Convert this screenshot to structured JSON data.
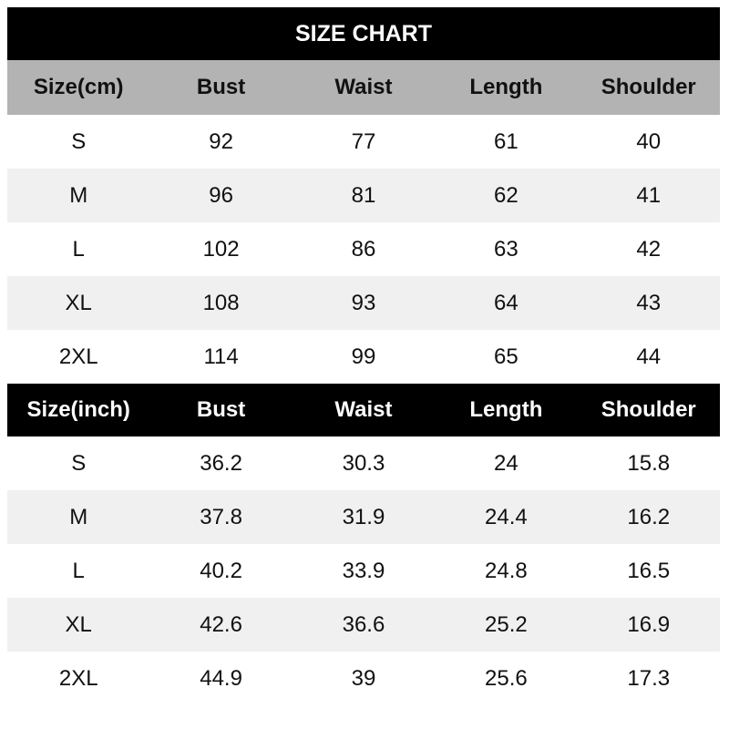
{
  "title": "SIZE CHART",
  "tables": [
    {
      "header": [
        "Size(cm)",
        "Bust",
        "Waist",
        "Length",
        "Shoulder"
      ],
      "rows": [
        [
          "S",
          92,
          77,
          61,
          40
        ],
        [
          "M",
          96,
          81,
          62,
          41
        ],
        [
          "L",
          102,
          86,
          63,
          42
        ],
        [
          "XL",
          108,
          93,
          64,
          43
        ],
        [
          "2XL",
          114,
          99,
          65,
          44
        ]
      ]
    },
    {
      "header": [
        "Size(inch)",
        "Bust",
        "Waist",
        "Length",
        "Shoulder"
      ],
      "rows": [
        [
          "S",
          36.2,
          30.3,
          24,
          15.8
        ],
        [
          "M",
          37.8,
          31.9,
          24.4,
          16.2
        ],
        [
          "L",
          40.2,
          33.9,
          24.8,
          16.5
        ],
        [
          "XL",
          42.6,
          36.6,
          25.2,
          16.9
        ],
        [
          "2XL",
          44.9,
          39,
          25.6,
          17.3
        ]
      ]
    }
  ]
}
